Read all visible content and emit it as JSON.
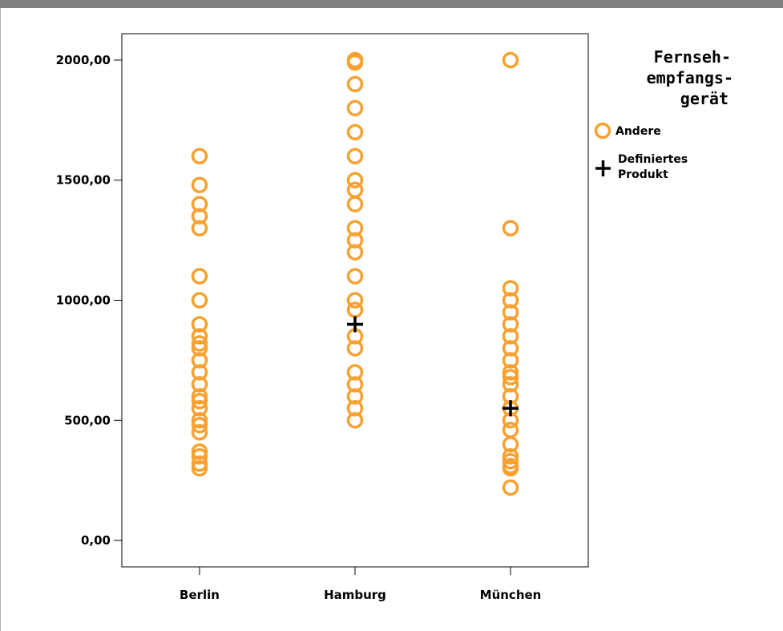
{
  "chart_data": {
    "type": "scatter",
    "categories": [
      "Berlin",
      "Hamburg",
      "München"
    ],
    "y_ticks": [
      "0,00",
      "500,00",
      "1000,00",
      "1500,00",
      "2000,00"
    ],
    "y_tick_values": [
      0,
      500,
      1000,
      1500,
      2000
    ],
    "ylim": [
      -110,
      2110
    ],
    "legend": {
      "title_lines": [
        "Fernseh-",
        "empfangs-",
        "gerät"
      ],
      "placement": "right"
    },
    "series": [
      {
        "name": "Andere",
        "marker": "circle",
        "color": "#F7A230",
        "points": [
          {
            "x": "Berlin",
            "y": [
              1600,
              1480,
              1400,
              1350,
              1300,
              1100,
              1000,
              900,
              850,
              820,
              800,
              750,
              700,
              650,
              600,
              580,
              550,
              500,
              480,
              450,
              370,
              350,
              320,
              300
            ]
          },
          {
            "x": "Hamburg",
            "y": [
              2000,
              1990,
              1900,
              1800,
              1700,
              1600,
              1500,
              1460,
              1400,
              1300,
              1250,
              1200,
              1100,
              1000,
              960,
              850,
              800,
              700,
              650,
              600,
              550,
              500
            ]
          },
          {
            "x": "München",
            "y": [
              2000,
              1300,
              1050,
              1000,
              950,
              900,
              850,
              800,
              750,
              700,
              680,
              650,
              600,
              550,
              500,
              460,
              400,
              350,
              330,
              310,
              300,
              220
            ]
          }
        ]
      },
      {
        "name": "Definiertes Produkt",
        "name_lines": [
          "Definiertes",
          "Produkt"
        ],
        "marker": "plus",
        "color": "#000000",
        "points": [
          {
            "x": "Hamburg",
            "y": [
              900
            ]
          },
          {
            "x": "München",
            "y": [
              550
            ]
          }
        ]
      }
    ]
  }
}
